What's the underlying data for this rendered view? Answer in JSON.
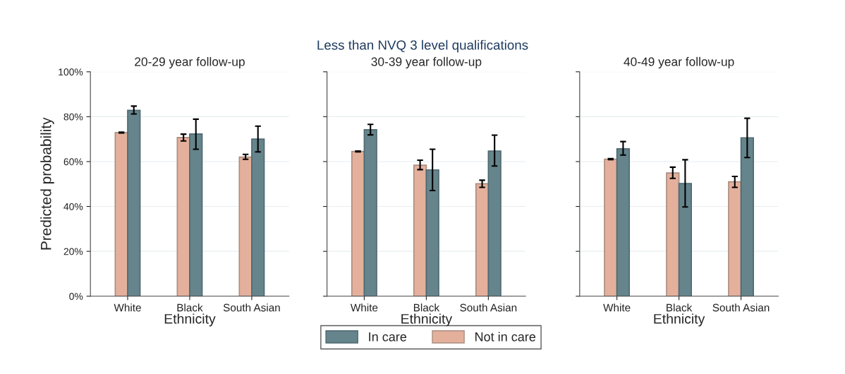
{
  "chart_data": [
    {
      "type": "bar",
      "title": "20-29 year follow-up",
      "xlabel": "Ethnicity",
      "ylabel": "Predicted probability",
      "annotations": [
        "Less than NVQ 3 level qualifications"
      ],
      "categories": [
        "White",
        "Black",
        "South Asian"
      ],
      "ylim": [
        0,
        100
      ],
      "yticks": [
        {
          "value": 0,
          "label": "0%"
        },
        {
          "value": 20,
          "label": "20%"
        },
        {
          "value": 40,
          "label": "40%"
        },
        {
          "value": 60,
          "label": "60%"
        },
        {
          "value": 80,
          "label": "80%"
        },
        {
          "value": 100,
          "label": "100%"
        }
      ],
      "grid": "y",
      "legend": "bottom",
      "series": [
        {
          "name": "Not in care",
          "color": "#e4b09c",
          "values": [
            72.9,
            70.7,
            62.0
          ],
          "errors": [
            [
              72.7,
              73.1
            ],
            [
              69.2,
              72.2
            ],
            [
              61.0,
              63.2
            ]
          ]
        },
        {
          "name": "In care",
          "color": "#66848b",
          "values": [
            82.8,
            72.3,
            70.0
          ],
          "errors": [
            [
              81.2,
              84.7
            ],
            [
              65.5,
              78.9
            ],
            [
              64.3,
              75.8
            ]
          ]
        }
      ]
    },
    {
      "type": "bar",
      "title": "30-39 year follow-up",
      "xlabel": "Ethnicity",
      "categories": [
        "White",
        "Black",
        "South Asian"
      ],
      "ylim": [
        0,
        100
      ],
      "yticks": [
        0,
        20,
        40,
        60,
        80,
        100
      ],
      "tick_labels": "x",
      "grid": "y",
      "series": [
        {
          "color": "#e4b09c",
          "values": [
            64.5,
            58.4,
            50.1
          ],
          "errors": [
            [
              64.3,
              64.7
            ],
            [
              56.4,
              60.6
            ],
            [
              48.5,
              51.7
            ]
          ]
        },
        {
          "color": "#66848b",
          "values": [
            74.2,
            56.3,
            64.7
          ],
          "errors": [
            [
              71.9,
              76.6
            ],
            [
              47.1,
              65.5
            ],
            [
              58.0,
              71.8
            ]
          ]
        }
      ]
    },
    {
      "type": "bar",
      "title": "40-49 year follow-up",
      "xlabel": "Ethnicity",
      "categories": [
        "White",
        "Black",
        "South Asian"
      ],
      "ylim": [
        0,
        100
      ],
      "yticks": [
        0,
        20,
        40,
        60,
        80,
        100
      ],
      "tick_labels": "x",
      "grid": "y",
      "series": [
        {
          "color": "#e4b09c",
          "values": [
            61.1,
            54.9,
            51.0
          ],
          "errors": [
            [
              60.9,
              61.3
            ],
            [
              52.5,
              57.5
            ],
            [
              48.5,
              53.4
            ]
          ]
        },
        {
          "color": "#66848b",
          "values": [
            65.7,
            50.2,
            70.6
          ],
          "errors": [
            [
              62.9,
              68.9
            ],
            [
              39.8,
              60.8
            ],
            [
              61.8,
              79.3
            ]
          ]
        }
      ]
    }
  ]
}
